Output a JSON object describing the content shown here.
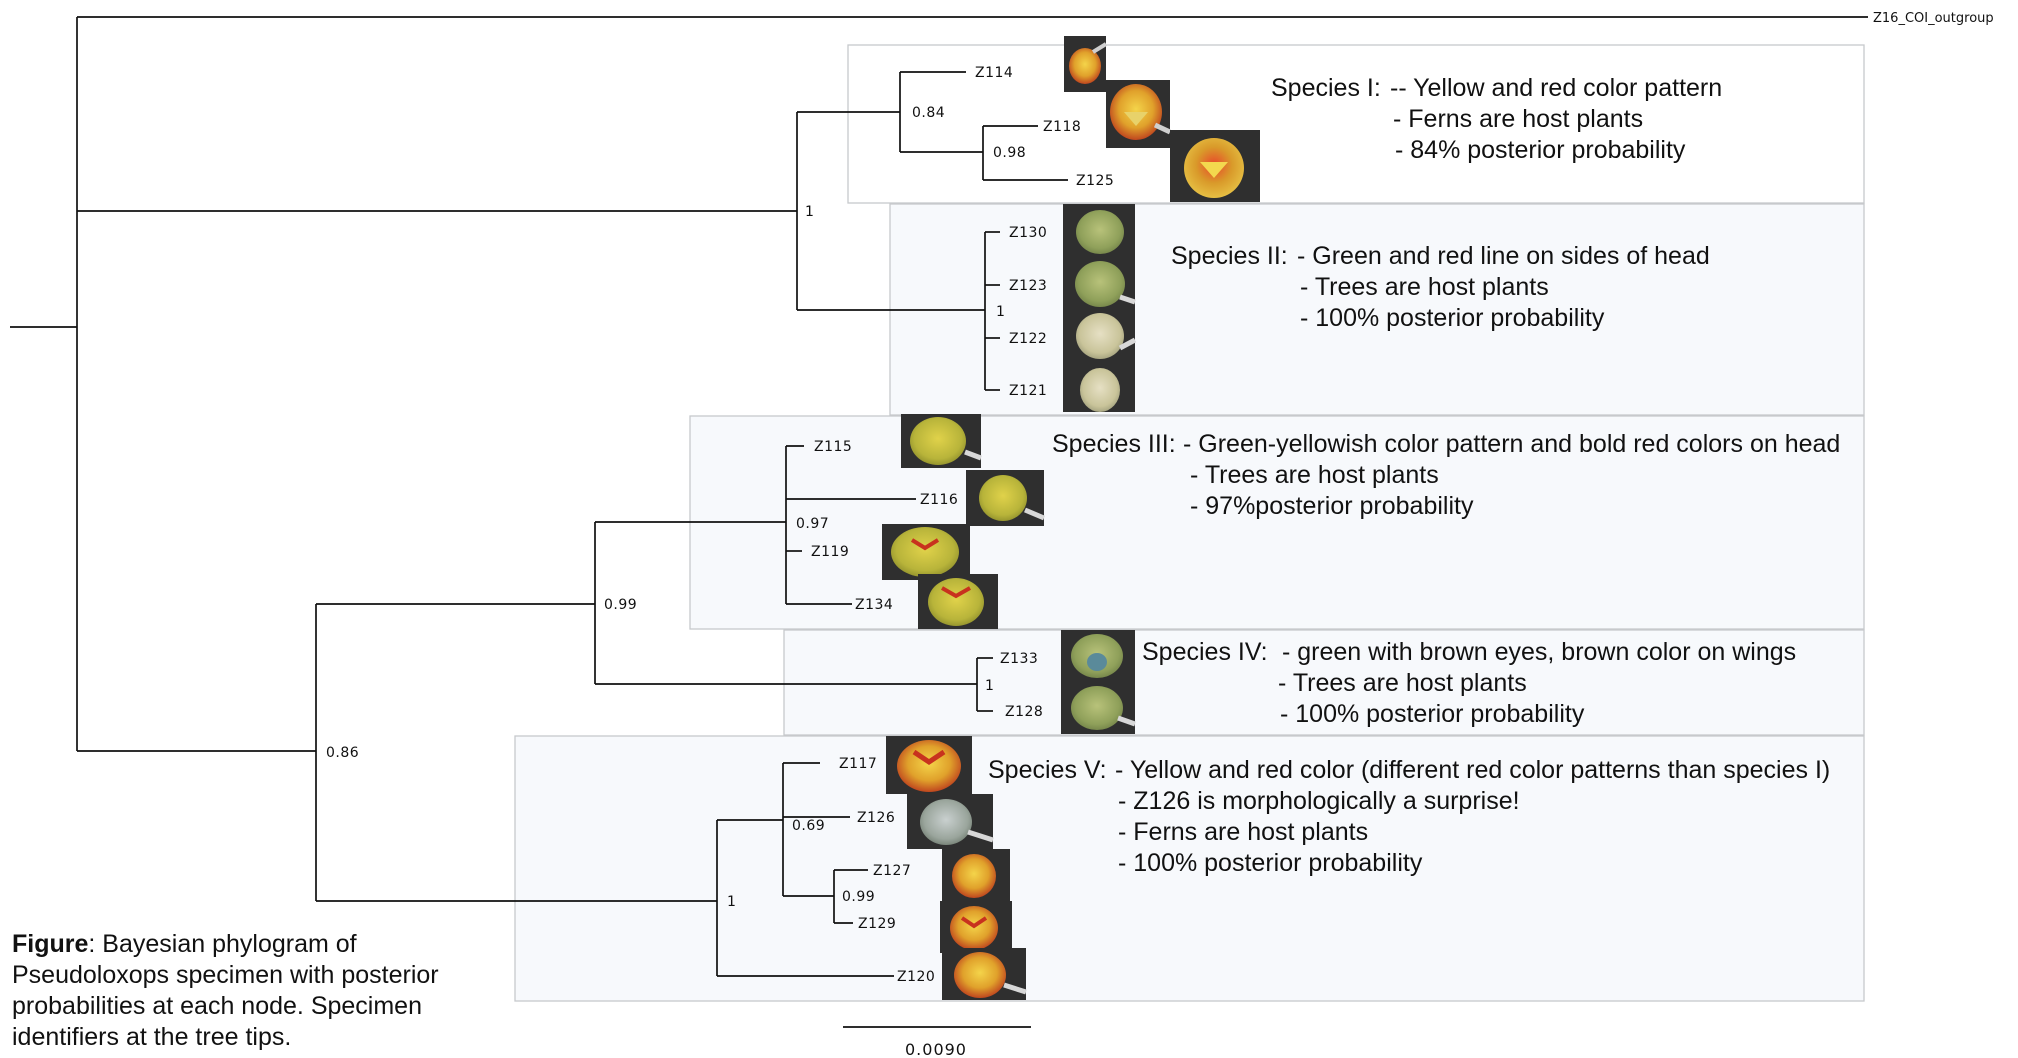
{
  "outgroup_label": "Z16_COI_outgroup",
  "tips": {
    "z114": "Z114",
    "z118": "Z118",
    "z125": "Z125",
    "z130": "Z130",
    "z123": "Z123",
    "z122": "Z122",
    "z121": "Z121",
    "z115": "Z115",
    "z116": "Z116",
    "z119": "Z119",
    "z134": "Z134",
    "z133": "Z133",
    "z128": "Z128",
    "z117": "Z117",
    "z126": "Z126",
    "z127": "Z127",
    "z129": "Z129",
    "z120": "Z120"
  },
  "support": {
    "n_084": "0.84",
    "n_098": "0.98",
    "n_1_speciesI_II": "1",
    "n_1_speciesII": "1",
    "n_097": "0.97",
    "n_099": "0.99",
    "n_1_speciesIV": "1",
    "n_069": "0.69",
    "n_099b": "0.99",
    "n_1_speciesV": "1",
    "n_086": "0.86"
  },
  "species": {
    "s1": {
      "title": "Species I:",
      "line1": "-- Yellow and red color pattern",
      "line2": "- Ferns are host plants",
      "line3": "- 84% posterior probability"
    },
    "s2": {
      "title": "Species II:",
      "line1": "- Green and red line on sides of head",
      "line2": "- Trees are host plants",
      "line3": "- 100% posterior probability"
    },
    "s3": {
      "title": "Species III:",
      "line1": "- Green-yellowish color pattern and bold red colors on head",
      "line2": "- Trees are host plants",
      "line3": "- 97%posterior probability"
    },
    "s4": {
      "title": "Species IV:",
      "line1": "- green with brown eyes, brown color on wings",
      "line2": "- Trees are host plants",
      "line3": "- 100% posterior probability"
    },
    "s5": {
      "title": "Species V:",
      "line1": "- Yellow and red color (different red color patterns than species I)",
      "line2": "- Z126 is morphologically a surprise!",
      "line3": "- Ferns are host plants",
      "line4": "- 100% posterior probability"
    }
  },
  "scale_bar_label": "0.0090",
  "caption": {
    "bold": "Figure",
    "text": ": Bayesian phylogram of Pseudoloxops specimen with posterior probabilities at each node. Specimen identifiers at the tree tips."
  },
  "colors": {
    "branch": "#111111",
    "box_fill": "#f7f9fc",
    "box_stroke": "#c7c9cc",
    "photo_bg": "#2f2f2f",
    "insect_yellow": "#d9b531",
    "insect_red": "#c8321e",
    "insect_green": "#9aab62"
  },
  "photo_icons": [
    "insect-photo-z114",
    "insect-photo-z118",
    "insect-photo-z125",
    "insect-photo-z130",
    "insect-photo-z123",
    "insect-photo-z122",
    "insect-photo-z121",
    "insect-photo-z115",
    "insect-photo-z116",
    "insect-photo-z119",
    "insect-photo-z134",
    "insect-photo-z133",
    "insect-photo-z128",
    "insect-photo-z117",
    "insect-photo-z126",
    "insect-photo-z127",
    "insect-photo-z129",
    "insect-photo-z120"
  ]
}
